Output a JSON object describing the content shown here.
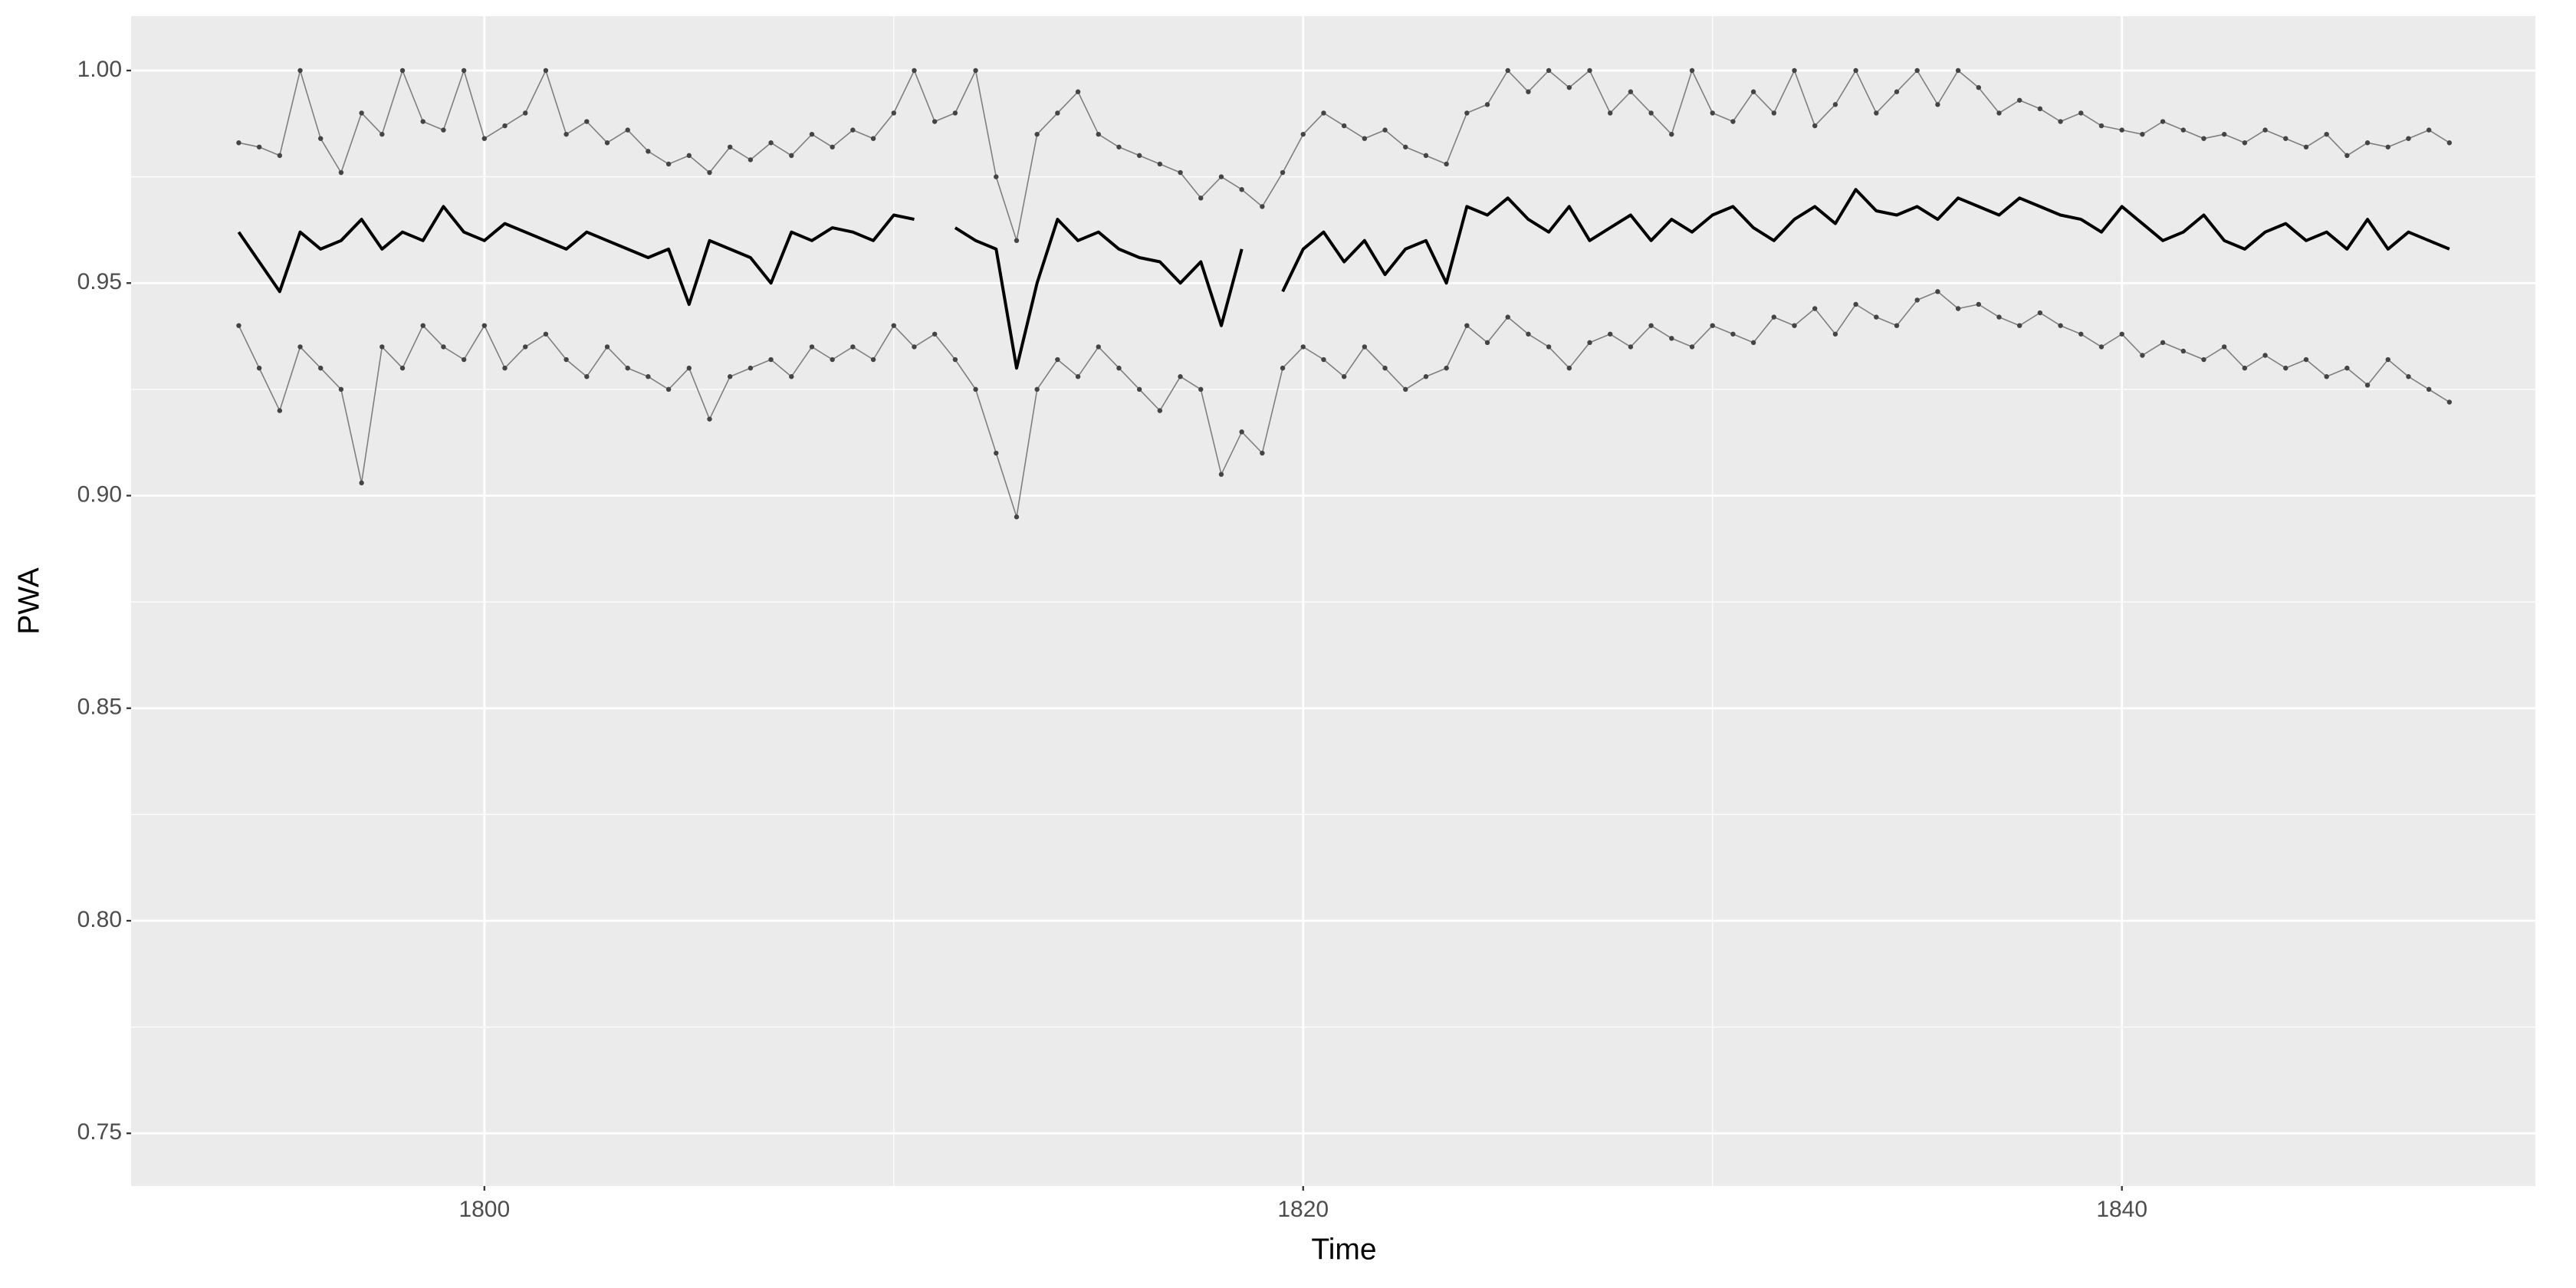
{
  "chart_data": {
    "type": "line",
    "xlabel": "Time",
    "ylabel": "PWA",
    "x": [
      1794,
      1794.5,
      1795,
      1795.5,
      1796,
      1796.5,
      1797,
      1797.5,
      1798,
      1798.5,
      1799,
      1799.5,
      1800,
      1800.5,
      1801,
      1801.5,
      1802,
      1802.5,
      1803,
      1803.5,
      1804,
      1804.5,
      1805,
      1805.5,
      1806,
      1806.5,
      1807,
      1807.5,
      1808,
      1808.5,
      1809,
      1809.5,
      1810,
      1810.5,
      1811,
      1811.5,
      1812,
      1812.5,
      1813,
      1813.5,
      1814,
      1814.5,
      1815,
      1815.5,
      1816,
      1816.5,
      1817,
      1817.5,
      1818,
      1818.5,
      1819,
      1819.5,
      1820,
      1820.5,
      1821,
      1821.5,
      1822,
      1822.5,
      1823,
      1823.5,
      1824,
      1824.5,
      1825,
      1825.5,
      1826,
      1826.5,
      1827,
      1827.5,
      1828,
      1828.5,
      1829,
      1829.5,
      1830,
      1830.5,
      1831,
      1831.5,
      1832,
      1832.5,
      1833,
      1833.5,
      1834,
      1834.5,
      1835,
      1835.5,
      1836,
      1836.5,
      1837,
      1837.5,
      1838,
      1838.5,
      1839,
      1839.5,
      1840,
      1840.5,
      1841,
      1841.5,
      1842,
      1842.5,
      1843,
      1843.5,
      1844,
      1844.5,
      1845,
      1845.5,
      1846,
      1846.5,
      1847,
      1847.5,
      1848
    ],
    "series": [
      {
        "color": "#7f7f7f",
        "points": true,
        "values": [
          0.983,
          0.982,
          0.98,
          1.0,
          0.984,
          0.976,
          0.99,
          0.985,
          1.0,
          0.988,
          0.986,
          1.0,
          0.984,
          0.987,
          0.99,
          1.0,
          0.985,
          0.988,
          0.983,
          0.986,
          0.981,
          0.978,
          0.98,
          0.976,
          0.982,
          0.979,
          0.983,
          0.98,
          0.985,
          0.982,
          0.986,
          0.984,
          0.99,
          1.0,
          0.988,
          0.99,
          1.0,
          0.975,
          0.96,
          0.985,
          0.99,
          0.995,
          0.985,
          0.982,
          0.98,
          0.978,
          0.976,
          0.97,
          0.975,
          0.972,
          0.968,
          0.976,
          0.985,
          0.99,
          0.987,
          0.984,
          0.986,
          0.982,
          0.98,
          0.978,
          0.99,
          0.992,
          1.0,
          0.995,
          1.0,
          0.996,
          1.0,
          0.99,
          0.995,
          0.99,
          0.985,
          1.0,
          0.99,
          0.988,
          0.995,
          0.99,
          1.0,
          0.987,
          0.992,
          1.0,
          0.99,
          0.995,
          1.0,
          0.992,
          1.0,
          0.996,
          0.99,
          0.993,
          0.991,
          0.988,
          0.99,
          0.987,
          0.986,
          0.985,
          0.988,
          0.986,
          0.984,
          0.985,
          0.983,
          0.986,
          0.984,
          0.982,
          0.985,
          0.98,
          0.983,
          0.982,
          0.984,
          0.986,
          0.983
        ]
      },
      {
        "color": "#000000",
        "points": false,
        "values": [
          0.962,
          0.955,
          0.948,
          0.962,
          0.958,
          0.96,
          0.965,
          0.958,
          0.962,
          0.96,
          0.968,
          0.962,
          0.96,
          0.964,
          0.962,
          0.96,
          0.958,
          0.962,
          0.96,
          0.958,
          0.956,
          0.958,
          0.945,
          0.96,
          0.958,
          0.956,
          0.95,
          0.962,
          0.96,
          0.963,
          0.962,
          0.96,
          0.966,
          0.965,
          null,
          0.963,
          0.96,
          0.958,
          0.93,
          0.95,
          0.965,
          0.96,
          0.962,
          0.958,
          0.956,
          0.955,
          0.95,
          0.955,
          0.94,
          0.958,
          null,
          0.948,
          0.958,
          0.962,
          0.955,
          0.96,
          0.952,
          0.958,
          0.96,
          0.95,
          0.968,
          0.966,
          0.97,
          0.965,
          0.962,
          0.968,
          0.96,
          0.963,
          0.966,
          0.96,
          0.965,
          0.962,
          0.966,
          0.968,
          0.963,
          0.96,
          0.965,
          0.968,
          0.964,
          0.972,
          0.967,
          0.966,
          0.968,
          0.965,
          0.97,
          0.968,
          0.966,
          0.97,
          0.968,
          0.966,
          0.965,
          0.962,
          0.968,
          0.964,
          0.96,
          0.962,
          0.966,
          0.96,
          0.958,
          0.962,
          0.964,
          0.96,
          0.962,
          0.958,
          0.965,
          0.958,
          0.962,
          0.96,
          0.958
        ]
      },
      {
        "color": "#7f7f7f",
        "points": true,
        "values": [
          0.94,
          0.93,
          0.92,
          0.935,
          0.93,
          0.925,
          0.903,
          0.935,
          0.93,
          0.94,
          0.935,
          0.932,
          0.94,
          0.93,
          0.935,
          0.938,
          0.932,
          0.928,
          0.935,
          0.93,
          0.928,
          0.925,
          0.93,
          0.918,
          0.928,
          0.93,
          0.932,
          0.928,
          0.935,
          0.932,
          0.935,
          0.932,
          0.94,
          0.935,
          0.938,
          0.932,
          0.925,
          0.91,
          0.895,
          0.925,
          0.932,
          0.928,
          0.935,
          0.93,
          0.925,
          0.92,
          0.928,
          0.925,
          0.905,
          0.915,
          0.91,
          0.93,
          0.935,
          0.932,
          0.928,
          0.935,
          0.93,
          0.925,
          0.928,
          0.93,
          0.94,
          0.936,
          0.942,
          0.938,
          0.935,
          0.93,
          0.936,
          0.938,
          0.935,
          0.94,
          0.937,
          0.935,
          0.94,
          0.938,
          0.936,
          0.942,
          0.94,
          0.944,
          0.938,
          0.945,
          0.942,
          0.94,
          0.946,
          0.948,
          0.944,
          0.945,
          0.942,
          0.94,
          0.943,
          0.94,
          0.938,
          0.935,
          0.938,
          0.933,
          0.936,
          0.934,
          0.932,
          0.935,
          0.93,
          0.933,
          0.93,
          0.932,
          0.928,
          0.93,
          0.926,
          0.932,
          0.928,
          0.925,
          0.922
        ]
      }
    ],
    "xlim": [
      1791.37,
      1850.1
    ],
    "ylim": [
      0.7376,
      1.0128
    ],
    "xticks": [
      1800,
      1820,
      1840
    ],
    "yticks": [
      0.75,
      {
        "value": 0.8,
        "label": "0.80"
      },
      0.85,
      {
        "value": 0.9,
        "label": "0.90"
      },
      0.95,
      {
        "value": 1.0,
        "label": "1.00"
      }
    ],
    "grid": true,
    "panel_color": "#ebebeb"
  }
}
